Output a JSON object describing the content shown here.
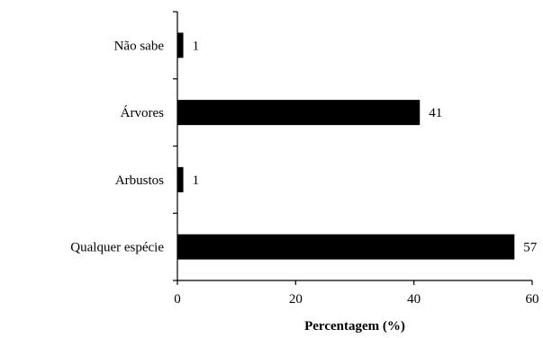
{
  "chart_data": {
    "type": "bar",
    "orientation": "horizontal",
    "categories": [
      "Não sabe",
      "Árvores",
      "Arbustos",
      "Qualquer espécie"
    ],
    "values": [
      1,
      41,
      1,
      57
    ],
    "value_labels": [
      "1",
      "41",
      "1",
      "57"
    ],
    "title": "",
    "xlabel": "Percentagem (%)",
    "ylabel": "",
    "xlim": [
      0,
      60
    ],
    "xticks": [
      0,
      20,
      40,
      60
    ],
    "xtick_labels": [
      "0",
      "20",
      "40",
      "60"
    ],
    "grid": false,
    "legend": false,
    "bar_color": "#000000"
  }
}
